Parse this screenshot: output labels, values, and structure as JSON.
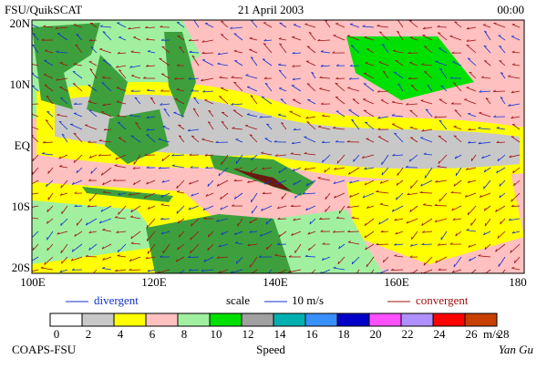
{
  "header": {
    "source": "FSU/QuikSCAT",
    "date": "21 April 2003",
    "time": "00:00"
  },
  "map": {
    "lat_labels": [
      "20N",
      "10N",
      "EQ",
      "10S",
      "20S"
    ],
    "lon_labels": [
      "100E",
      "120E",
      "140E",
      "160E",
      "180"
    ]
  },
  "legend": {
    "divergent": "divergent",
    "scale": "scale",
    "scale_value": "10 m/s",
    "convergent": "convergent"
  },
  "colorbar": {
    "ticks": [
      0,
      2,
      4,
      6,
      8,
      10,
      12,
      14,
      16,
      18,
      20,
      22,
      24,
      26,
      28
    ],
    "unit": "m/s",
    "title": "Speed",
    "colors": [
      "#ffffff",
      "#c8c8c8",
      "#ffff00",
      "#ffc0c0",
      "#a0f0a0",
      "#00e000",
      "#a0a0a0",
      "#00b0b0",
      "#3890ff",
      "#0000c8",
      "#ff50ff",
      "#b090ff",
      "#ff0000",
      "#c84000",
      "#000000"
    ]
  },
  "footer": {
    "org": "COAPS-FSU",
    "author": "Yan Gu"
  }
}
